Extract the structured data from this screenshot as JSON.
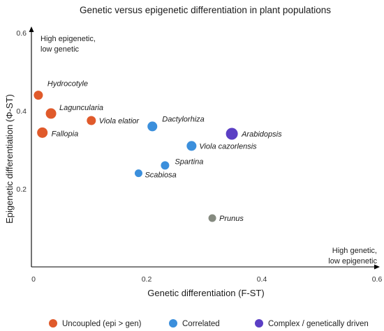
{
  "chart_data": {
    "type": "scatter",
    "title": "Genetic versus epigenetic differentiation in plant populations",
    "xlabel": "Genetic differentiation (F-ST)",
    "ylabel": "Epigenetic differentiation (Φ-ST)",
    "xlim": [
      0,
      0.6
    ],
    "ylim": [
      0,
      0.6
    ],
    "x_ticks": [
      "0",
      "0.2",
      "0.4",
      "0.6"
    ],
    "y_ticks": [
      "0.2",
      "0.4",
      "0.6"
    ],
    "corner_top_left": [
      "High epigenetic,",
      "low genetic"
    ],
    "corner_bottom_right": [
      "High genetic,",
      "low epigenetic"
    ],
    "legend_position": "bottom",
    "categories": [
      {
        "key": "uncoupled",
        "name": "Uncoupled (epi > gen)",
        "color": "#e05a2b"
      },
      {
        "key": "correlated",
        "name": "Correlated",
        "color": "#3b8fdc"
      },
      {
        "key": "complex",
        "name": "Complex / genetically driven",
        "color": "#5b3fc4"
      },
      {
        "key": "other",
        "name": "",
        "color": "#858a80"
      }
    ],
    "points": [
      {
        "label": "Hydrocotyle",
        "x": 0.012,
        "y": 0.44,
        "category": "uncoupled",
        "size": 6.5
      },
      {
        "label": "Laguncularia",
        "x": 0.034,
        "y": 0.393,
        "category": "uncoupled",
        "size": 7.5
      },
      {
        "label": "Fallopia",
        "x": 0.019,
        "y": 0.344,
        "category": "uncoupled",
        "size": 7.5
      },
      {
        "label": "Viola elatior",
        "x": 0.104,
        "y": 0.375,
        "category": "uncoupled",
        "size": 6.5
      },
      {
        "label": "Dactylorhiza",
        "x": 0.21,
        "y": 0.36,
        "category": "correlated",
        "size": 7
      },
      {
        "label": "Viola cazorlensis",
        "x": 0.278,
        "y": 0.31,
        "category": "correlated",
        "size": 7
      },
      {
        "label": "Spartina",
        "x": 0.232,
        "y": 0.26,
        "category": "correlated",
        "size": 6
      },
      {
        "label": "Scabiosa",
        "x": 0.186,
        "y": 0.24,
        "category": "correlated",
        "size": 5.5
      },
      {
        "label": "Arabidopsis",
        "x": 0.348,
        "y": 0.341,
        "category": "complex",
        "size": 8.5
      },
      {
        "label": "Prunus",
        "x": 0.314,
        "y": 0.125,
        "category": "other",
        "size": 5.5
      }
    ]
  }
}
